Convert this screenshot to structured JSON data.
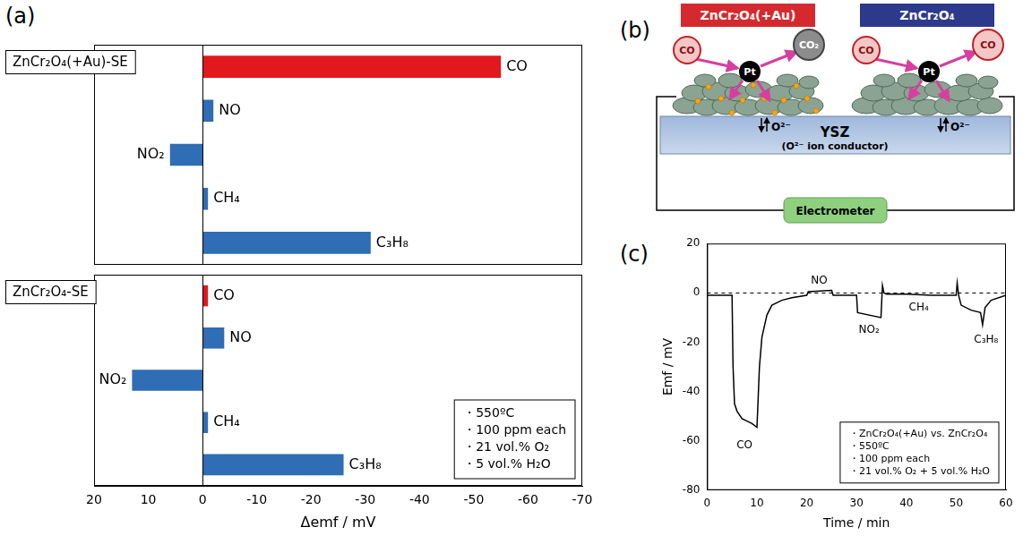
{
  "panel_labels": [
    "(a)",
    "(b)",
    "(c)"
  ],
  "chart_data": [
    {
      "type": "bar",
      "orientation": "horizontal",
      "title": "ZnCr₂O₄(+Au)-SE",
      "categories": [
        "CO",
        "NO",
        "NO₂",
        "CH₄",
        "C₃H₈"
      ],
      "values": [
        -55,
        -2,
        6,
        -1,
        -31
      ],
      "colors": [
        "#e3171e",
        "#2f6db5",
        "#2f6db5",
        "#2f6db5",
        "#2f6db5"
      ],
      "xlim": [
        20,
        -70
      ],
      "reference_line": 0,
      "tick_labels": false,
      "grid": false
    },
    {
      "type": "bar",
      "orientation": "horizontal",
      "title": "ZnCr₂O₄-SE",
      "categories": [
        "CO",
        "NO",
        "NO₂",
        "CH₄",
        "C₃H₈"
      ],
      "values": [
        -1,
        -4,
        13,
        -1,
        -26
      ],
      "colors": [
        "#e3171e",
        "#2f6db5",
        "#2f6db5",
        "#2f6db5",
        "#2f6db5"
      ],
      "xlim": [
        20,
        -70
      ],
      "xticks": [
        20,
        10,
        0,
        -10,
        -20,
        -30,
        -40,
        -50,
        -60,
        -70
      ],
      "xlabel": "Δemf / mV",
      "reference_line": 0,
      "notes": [
        "・550ºC",
        "・100 ppm each",
        "・21 vol.% O₂",
        "・5 vol.% H₂O"
      ],
      "tick_labels": "x",
      "grid": false
    },
    {
      "type": "line",
      "x": [
        0,
        5,
        5.2,
        5.5,
        6,
        7,
        8,
        9,
        10,
        10.2,
        10.5,
        11,
        12,
        13,
        15,
        17,
        20,
        20.3,
        25,
        25.3,
        30,
        30.2,
        34.9,
        35.2,
        35.5,
        36,
        40,
        45,
        50,
        50.2,
        50.5,
        51,
        53,
        54.9,
        55.3,
        55.8,
        57,
        60
      ],
      "values": [
        -1,
        -1,
        -30,
        -45,
        -48,
        -51,
        -52,
        -53,
        -54.5,
        -45,
        -30,
        -18,
        -9,
        -5,
        -3,
        -2,
        -1,
        0.5,
        1,
        -1,
        -1,
        -8,
        -10,
        3,
        0,
        -0.5,
        -0.5,
        -1,
        -1,
        4,
        -1,
        -5,
        -7,
        -8,
        -13,
        -6,
        -3,
        -1
      ],
      "color": "#000000",
      "line_style": "solid",
      "xlim": [
        0,
        60
      ],
      "xticks": [
        0,
        10,
        20,
        30,
        40,
        50,
        60
      ],
      "ylim": [
        -80,
        20
      ],
      "yticks": [
        -80,
        -60,
        -40,
        -20,
        0,
        20
      ],
      "xlabel": "Time / min",
      "ylabel": "Emf / mV",
      "reference_line": 0,
      "annotations": [
        {
          "text": "CO",
          "x": 7.5,
          "y": -62
        },
        {
          "text": "NO",
          "x": 22.5,
          "y": 5
        },
        {
          "text": "NO₂",
          "x": 32.5,
          "y": -15
        },
        {
          "text": "CH₄",
          "x": 42.5,
          "y": -6
        },
        {
          "text": "C₃H₈",
          "x": 56,
          "y": -19
        }
      ],
      "notes": [
        "・ZnCr₂O₄(+Au) vs. ZnCr₂O₄",
        "・550ºC",
        "・100 ppm each",
        "・21 vol.% O₂ + 5 vol.% H₂O"
      ],
      "grid": false
    }
  ],
  "diagram": {
    "electrodes": [
      {
        "label": "ZnCr₂O₄(+Au)",
        "gas_in": "CO",
        "gas_out": "CO₂",
        "catalyst": "Pt",
        "ion": "O²⁻"
      },
      {
        "label": "ZnCr₂O₄",
        "gas_in": "CO",
        "gas_out": "CO",
        "catalyst": "Pt",
        "ion": "O²⁻"
      }
    ],
    "electrolyte": "YSZ",
    "electrolyte_note": "(O²⁻ ion conductor)",
    "meter": "Electrometer"
  }
}
